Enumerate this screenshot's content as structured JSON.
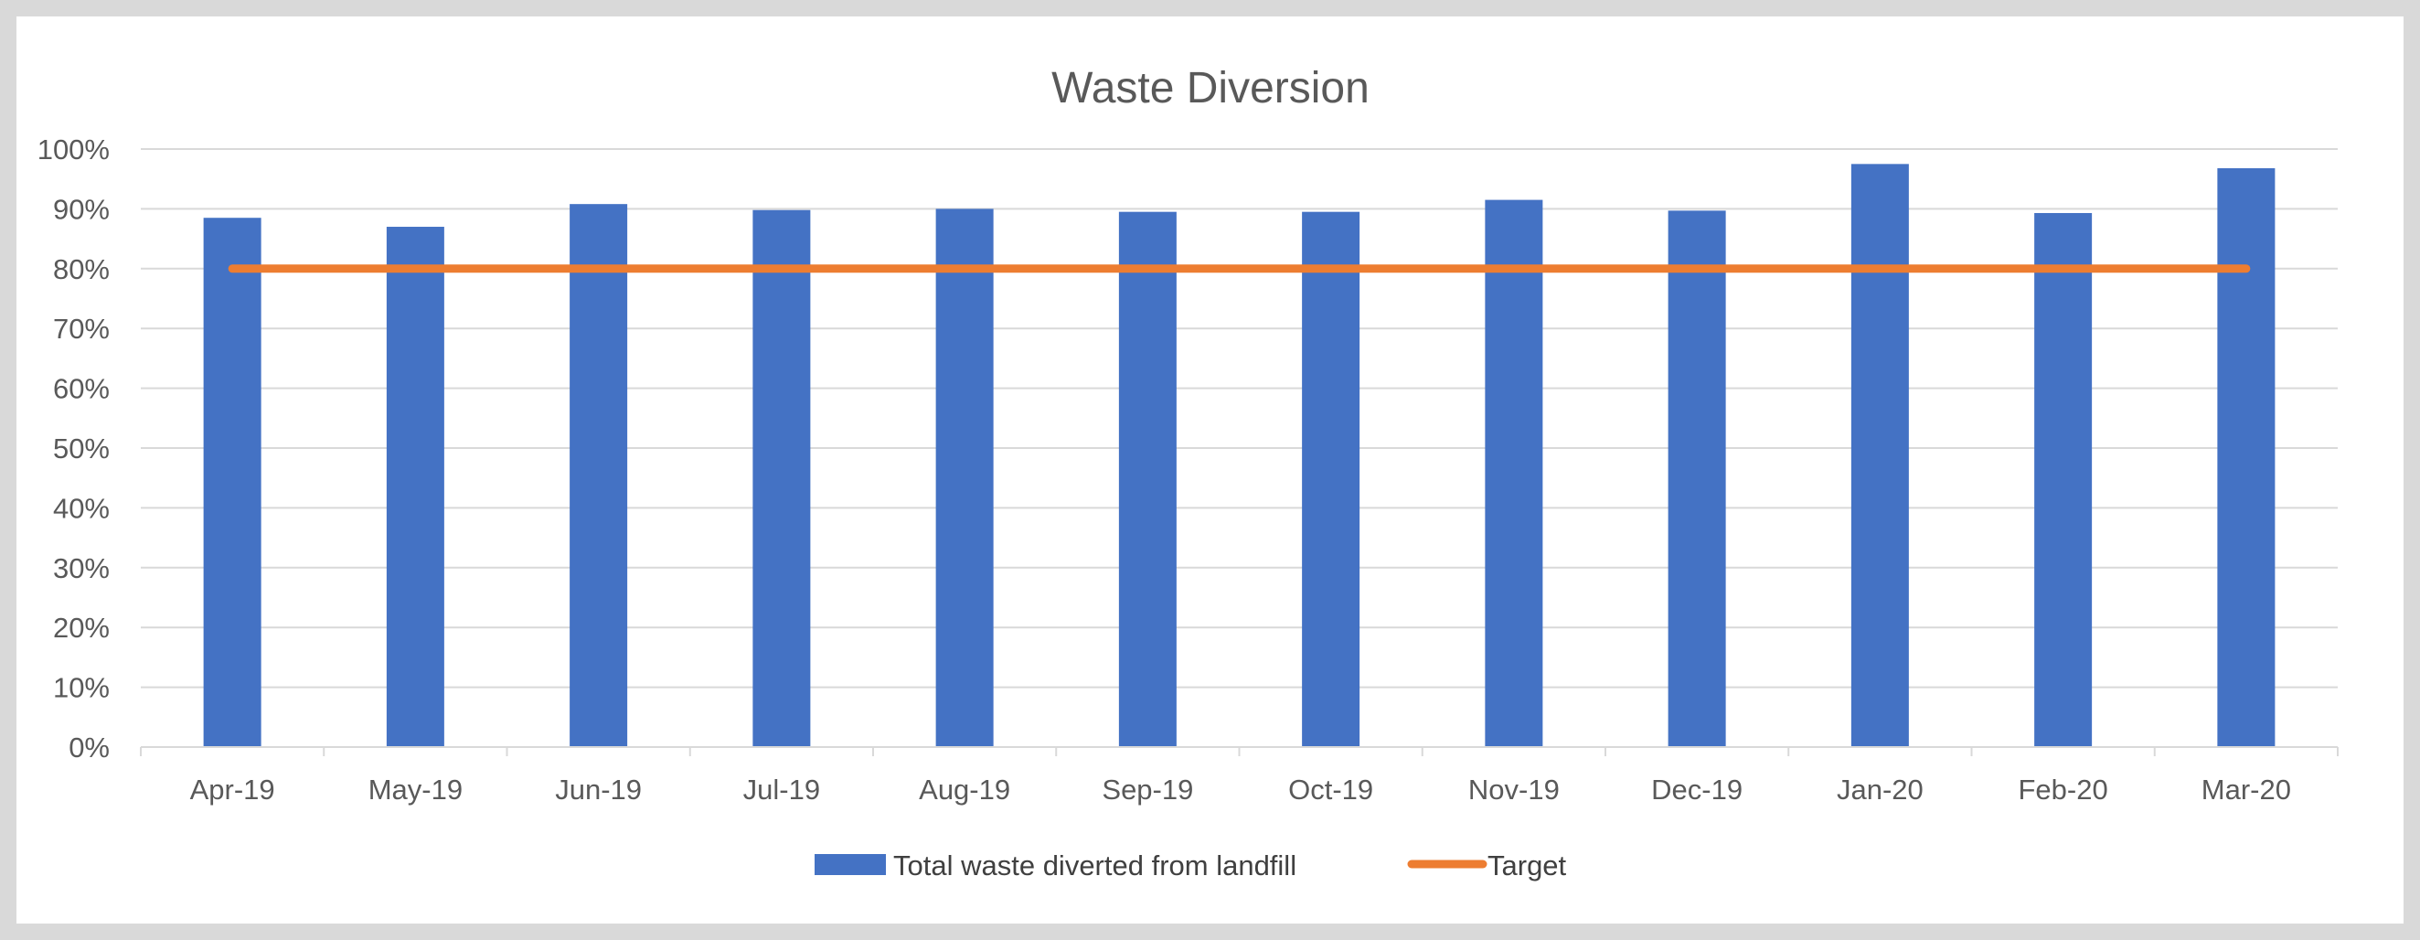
{
  "chart_data": {
    "type": "bar",
    "title": "Waste Diversion",
    "xlabel": "",
    "ylabel": "",
    "ylim": [
      0,
      100
    ],
    "yticks": [
      "0%",
      "10%",
      "20%",
      "30%",
      "40%",
      "50%",
      "60%",
      "70%",
      "80%",
      "90%",
      "100%"
    ],
    "categories": [
      "Apr-19",
      "May-19",
      "Jun-19",
      "Jul-19",
      "Aug-19",
      "Sep-19",
      "Oct-19",
      "Nov-19",
      "Dec-19",
      "Jan-20",
      "Feb-20",
      "Mar-20"
    ],
    "series": [
      {
        "name": "Total waste diverted from landfill",
        "type": "bar",
        "color": "#4472c4",
        "values": [
          88.5,
          87.0,
          90.8,
          89.8,
          90.0,
          89.5,
          89.5,
          91.5,
          89.7,
          97.5,
          89.3,
          96.8
        ]
      },
      {
        "name": "Target",
        "type": "line",
        "color": "#ed7d31",
        "values": [
          80,
          80,
          80,
          80,
          80,
          80,
          80,
          80,
          80,
          80,
          80,
          80
        ]
      }
    ],
    "grid": true,
    "legend_position": "bottom"
  }
}
